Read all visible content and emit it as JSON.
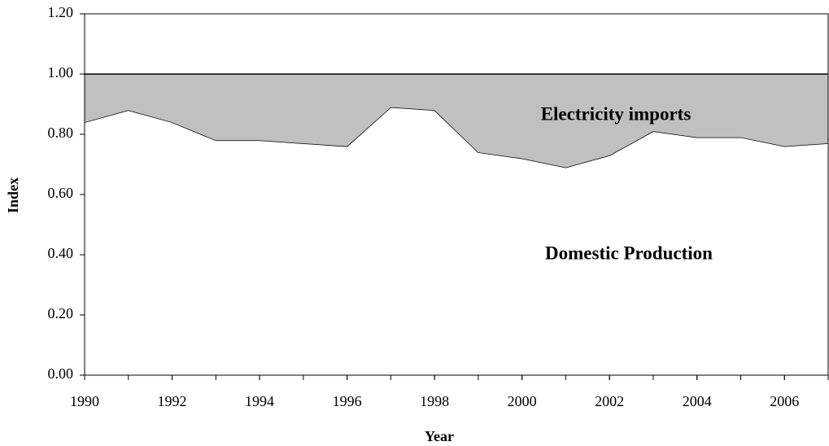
{
  "chart_data": {
    "type": "area",
    "stacked": true,
    "x_label": "Year",
    "y_label": "Index",
    "x": [
      1990,
      1991,
      1992,
      1993,
      1994,
      1995,
      1996,
      1997,
      1998,
      1999,
      2000,
      2001,
      2002,
      2003,
      2004,
      2005,
      2006,
      2007
    ],
    "series": [
      {
        "name": "Domestic Production",
        "color": "#ffffff",
        "values": [
          0.84,
          0.88,
          0.84,
          0.78,
          0.78,
          0.77,
          0.76,
          0.89,
          0.88,
          0.74,
          0.72,
          0.69,
          0.73,
          0.81,
          0.79,
          0.79,
          0.76,
          0.77
        ]
      },
      {
        "name": "Electricity imports",
        "color": "#c0c0c0",
        "values": [
          0.16,
          0.12,
          0.16,
          0.22,
          0.22,
          0.23,
          0.24,
          0.11,
          0.12,
          0.26,
          0.28,
          0.31,
          0.27,
          0.19,
          0.21,
          0.21,
          0.24,
          0.23
        ]
      }
    ],
    "xlim": [
      1990,
      2007
    ],
    "xticks": [
      1990,
      1992,
      1994,
      1996,
      1998,
      2000,
      2002,
      2004,
      2006
    ],
    "ylim": [
      0,
      1.2
    ],
    "yticks": [
      {
        "value": 0,
        "label": "0.00"
      },
      {
        "value": 0.2,
        "label": "0.20"
      },
      {
        "value": 0.4,
        "label": "0.40"
      },
      {
        "value": 0.6,
        "label": "0.60"
      },
      {
        "value": 0.8,
        "label": "0.80"
      },
      {
        "value": 1,
        "label": "1.00"
      },
      {
        "value": 1.2,
        "label": "1.20"
      }
    ],
    "grid": false
  }
}
